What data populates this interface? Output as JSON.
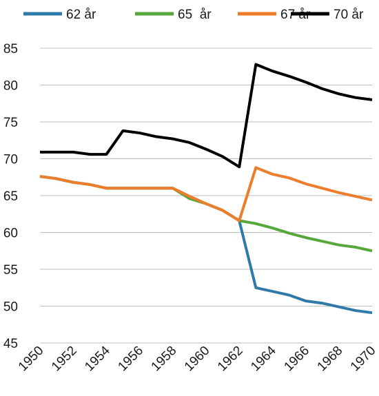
{
  "chart_data": {
    "type": "line",
    "title": "",
    "xlabel": "",
    "ylabel": "",
    "x": [
      1950,
      1951,
      1952,
      1953,
      1954,
      1955,
      1956,
      1957,
      1958,
      1959,
      1960,
      1961,
      1962,
      1963,
      1964,
      1965,
      1966,
      1967,
      1968,
      1969,
      1970
    ],
    "xticks": [
      "1950",
      "1952",
      "1954",
      "1956",
      "1958",
      "1960",
      "1962",
      "1964",
      "1966",
      "1968",
      "1970"
    ],
    "yticks": [
      "45",
      "50",
      "55",
      "60",
      "65",
      "70",
      "75",
      "80",
      "85"
    ],
    "xlim": [
      1950,
      1970
    ],
    "ylim": [
      45,
      85
    ],
    "grid": true,
    "legend": "top",
    "series": [
      {
        "name": "62 år",
        "color": "#2e7bab",
        "values": [
          67.6,
          67.3,
          66.8,
          66.5,
          66.0,
          66.0,
          66.0,
          66.0,
          66.0,
          64.9,
          63.9,
          63.0,
          61.6,
          52.5,
          52.0,
          51.5,
          50.7,
          50.4,
          49.9,
          49.4,
          49.1
        ]
      },
      {
        "name": "65  år",
        "color": "#57a83a",
        "values": [
          67.6,
          67.3,
          66.8,
          66.5,
          66.0,
          66.0,
          66.0,
          66.0,
          66.0,
          64.6,
          63.9,
          63.0,
          61.6,
          61.2,
          60.6,
          59.9,
          59.3,
          58.8,
          58.3,
          58.0,
          57.5
        ]
      },
      {
        "name": "67 år",
        "color": "#ee7d2b",
        "values": [
          67.6,
          67.3,
          66.8,
          66.5,
          66.0,
          66.0,
          66.0,
          66.0,
          66.0,
          64.9,
          63.9,
          63.0,
          61.6,
          68.8,
          67.9,
          67.4,
          66.6,
          66.0,
          65.4,
          64.9,
          64.4
        ]
      },
      {
        "name": "70 år",
        "color": "#000000",
        "values": [
          70.9,
          70.9,
          70.9,
          70.6,
          70.6,
          73.8,
          73.5,
          73.0,
          72.7,
          72.2,
          71.3,
          70.3,
          68.9,
          82.8,
          81.9,
          81.2,
          80.4,
          79.5,
          78.8,
          78.3,
          78.0
        ]
      }
    ]
  }
}
